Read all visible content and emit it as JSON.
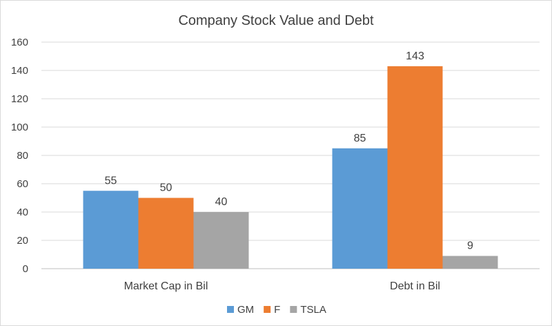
{
  "chart_data": {
    "type": "bar",
    "title": "Company Stock Value and Debt",
    "xlabel": "",
    "ylabel": "",
    "categories": [
      "Market Cap in Bil",
      "Debt in Bil"
    ],
    "series": [
      {
        "name": "GM",
        "values": [
          55,
          85
        ],
        "color": "#5b9bd5"
      },
      {
        "name": "F",
        "values": [
          50,
          143
        ],
        "color": "#ed7d31"
      },
      {
        "name": "TSLA",
        "values": [
          40,
          9
        ],
        "color": "#a5a5a5"
      }
    ],
    "ylim": [
      0,
      160
    ],
    "yticks": [
      "0",
      "20",
      "40",
      "60",
      "80",
      "100",
      "120",
      "140",
      "160"
    ],
    "grid": true,
    "legend_position": "bottom"
  }
}
